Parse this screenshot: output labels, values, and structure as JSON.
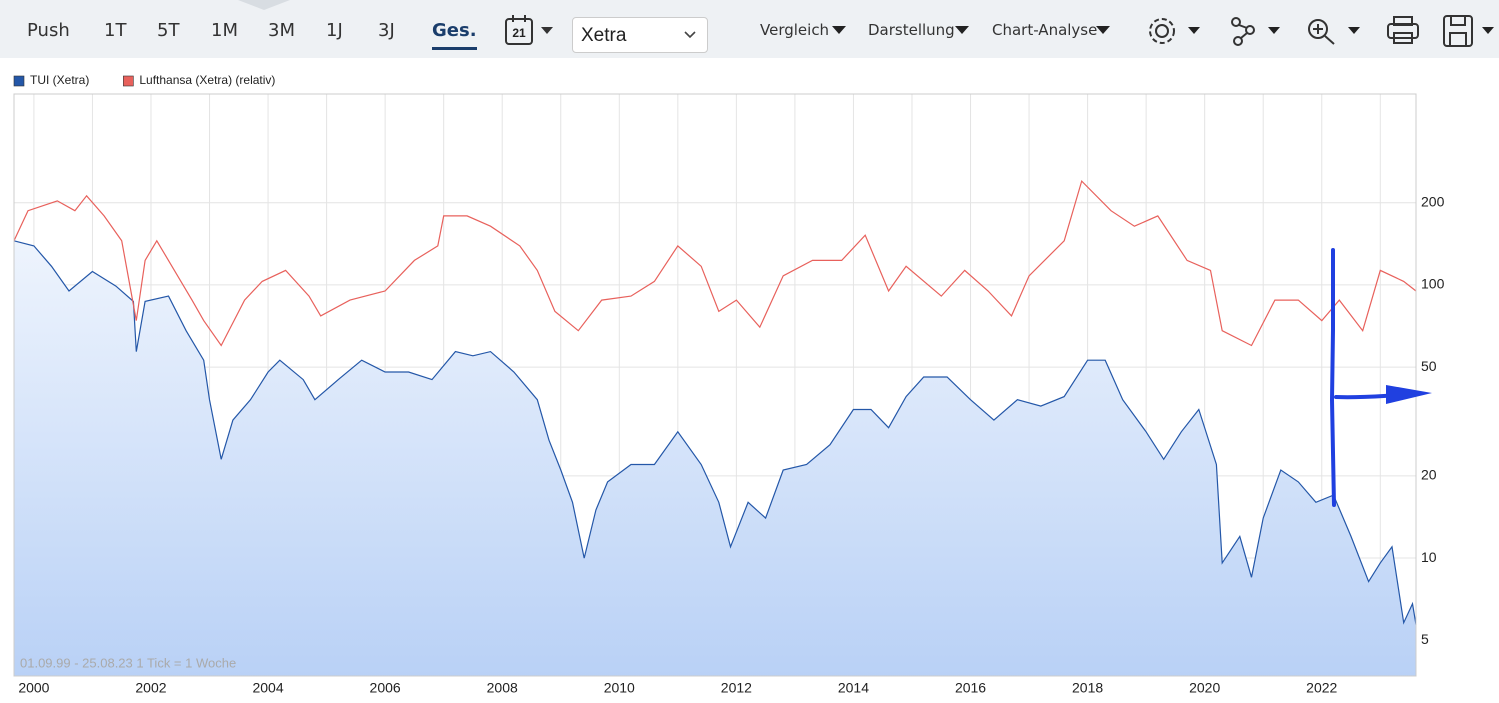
{
  "toolbar": {
    "ranges": [
      "Push",
      "1T",
      "5T",
      "1M",
      "3M",
      "1J",
      "3J",
      "Ges."
    ],
    "calendar": "21",
    "exchange": "Xetra",
    "menus": [
      "Vergleich",
      "Darstellung",
      "Chart-Analyse"
    ]
  },
  "chart_data": {
    "type": "line",
    "log_scale": true,
    "grid": true,
    "footnote": "01.09.99 - 25.08.23   1 Tick = 1 Woche",
    "xlim": [
      1999.66,
      2023.61
    ],
    "xticks": [
      2000,
      2002,
      2004,
      2006,
      2008,
      2010,
      2012,
      2014,
      2016,
      2018,
      2020,
      2022
    ],
    "xminorticks": [
      2001,
      2003,
      2005,
      2007,
      2009,
      2011,
      2013,
      2015,
      2017,
      2019,
      2021,
      2023
    ],
    "ylim": [
      3.7,
      500
    ],
    "yticks": [
      5,
      10,
      20,
      50,
      100,
      200
    ],
    "series": [
      {
        "name": "TUI (Xetra)",
        "color": "#2457a8",
        "area": true,
        "x": [
          1999.66,
          2000.0,
          2000.3,
          2000.6,
          2001.0,
          2001.4,
          2001.7,
          2001.75,
          2001.9,
          2002.3,
          2002.6,
          2002.9,
          2003.0,
          2003.2,
          2003.4,
          2003.7,
          2004.0,
          2004.2,
          2004.6,
          2004.8,
          2005.2,
          2005.6,
          2006.0,
          2006.4,
          2006.8,
          2007.2,
          2007.5,
          2007.8,
          2008.2,
          2008.6,
          2008.8,
          2009.0,
          2009.2,
          2009.4,
          2009.6,
          2009.8,
          2010.2,
          2010.6,
          2011.0,
          2011.4,
          2011.7,
          2011.9,
          2012.2,
          2012.5,
          2012.8,
          2013.2,
          2013.6,
          2014.0,
          2014.3,
          2014.6,
          2014.9,
          2015.2,
          2015.6,
          2016.0,
          2016.4,
          2016.8,
          2017.2,
          2017.6,
          2018.0,
          2018.3,
          2018.6,
          2019.0,
          2019.3,
          2019.6,
          2019.9,
          2020.2,
          2020.3,
          2020.6,
          2020.8,
          2021.0,
          2021.3,
          2021.6,
          2021.9,
          2022.2,
          2022.5,
          2022.8,
          2023.0,
          2023.2,
          2023.4,
          2023.55,
          2023.61
        ],
        "values": [
          145,
          139,
          117,
          95,
          112,
          99,
          87,
          57,
          87,
          91,
          68,
          53,
          38,
          23,
          32,
          38,
          48,
          53,
          45,
          38,
          45,
          53,
          48,
          48,
          45,
          57,
          55,
          57,
          48,
          38,
          27,
          21,
          16,
          10,
          15,
          19,
          22,
          22,
          29,
          22,
          16,
          11,
          16,
          14,
          21,
          22,
          26,
          35,
          35,
          30,
          39,
          46,
          46,
          38,
          32,
          38,
          36,
          39,
          53,
          53,
          38,
          29,
          23,
          29,
          35,
          22,
          9.6,
          12,
          8.5,
          14,
          21,
          19,
          16,
          17,
          12,
          8.2,
          9.6,
          11,
          5.8,
          6.8,
          5.7
        ]
      },
      {
        "name": "Lufthansa (Xetra) (relativ)",
        "color": "#e8615c",
        "area": false,
        "x": [
          1999.66,
          1999.9,
          2000.4,
          2000.7,
          2000.9,
          2001.2,
          2001.5,
          2001.75,
          2001.9,
          2002.1,
          2002.4,
          2002.7,
          2002.9,
          2003.2,
          2003.6,
          2003.9,
          2004.3,
          2004.7,
          2004.9,
          2005.4,
          2006.0,
          2006.5,
          2006.9,
          2007.0,
          2007.4,
          2007.8,
          2008.3,
          2008.6,
          2008.9,
          2009.3,
          2009.7,
          2010.2,
          2010.6,
          2011.0,
          2011.4,
          2011.7,
          2012.0,
          2012.4,
          2012.8,
          2013.3,
          2013.8,
          2014.2,
          2014.6,
          2014.9,
          2015.5,
          2015.9,
          2016.3,
          2016.7,
          2017.0,
          2017.6,
          2017.9,
          2018.4,
          2018.8,
          2019.2,
          2019.7,
          2020.1,
          2020.3,
          2020.8,
          2021.2,
          2021.6,
          2022.0,
          2022.3,
          2022.7,
          2023.0,
          2023.4,
          2023.61
        ],
        "values": [
          145,
          187,
          203,
          187,
          212,
          179,
          145,
          74,
          123,
          145,
          113,
          88,
          74,
          60,
          88,
          103,
          113,
          91,
          77,
          88,
          95,
          123,
          139,
          179,
          179,
          164,
          139,
          113,
          80,
          68,
          88,
          91,
          103,
          139,
          117,
          80,
          88,
          70,
          108,
          123,
          123,
          152,
          95,
          117,
          91,
          113,
          95,
          77,
          108,
          145,
          240,
          187,
          164,
          179,
          123,
          113,
          68,
          60,
          88,
          88,
          74,
          88,
          68,
          113,
          103,
          95
        ]
      }
    ]
  }
}
